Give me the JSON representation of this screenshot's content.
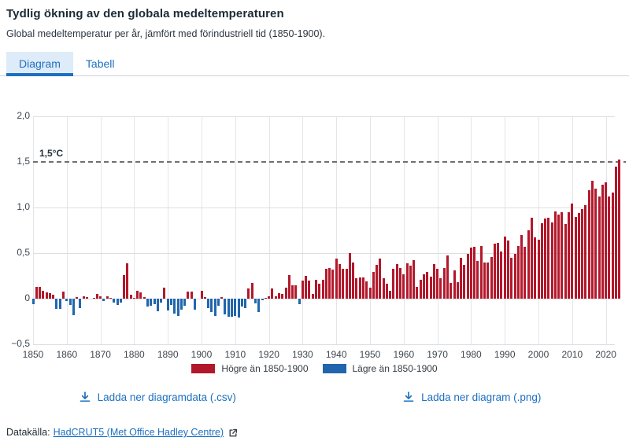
{
  "header": {
    "title": "Tydlig ökning av den globala medeltemperaturen",
    "subtitle": "Global medeltemperatur per år, jämfört med förindustriell tid (1850-1900)."
  },
  "tabs": {
    "items": [
      {
        "label": "Diagram",
        "active": true
      },
      {
        "label": "Tabell",
        "active": false
      }
    ]
  },
  "chart_data": {
    "type": "bar",
    "title": "Global medeltemperatur per år, jämfört med förindustriell tid (1850-1900)",
    "unit": "°C",
    "start_year": 1850,
    "end_year": 2024,
    "ylim": [
      -0.5,
      2.0
    ],
    "grid": true,
    "positive_color": "#b2182b",
    "negative_color": "#2166ac",
    "threshold": {
      "value": 1.5,
      "label": "1,5°C"
    },
    "yticks": [
      {
        "value": 2.0,
        "label": "2,0",
        "grid": true
      },
      {
        "value": 1.5,
        "label": "1,5",
        "grid": false
      },
      {
        "value": 1.0,
        "label": "1,0",
        "grid": true
      },
      {
        "value": 0.5,
        "label": "0,5",
        "grid": true
      },
      {
        "value": 0,
        "label": "0",
        "grid": true
      },
      {
        "value": -0.5,
        "label": "−0,5",
        "grid": true
      }
    ],
    "xticks": [
      1850,
      1860,
      1870,
      1880,
      1890,
      1900,
      1910,
      1920,
      1930,
      1940,
      1950,
      1960,
      1970,
      1980,
      1990,
      2000,
      2010,
      2020
    ],
    "values": [
      -0.06,
      0.13,
      0.13,
      0.09,
      0.07,
      0.06,
      0.04,
      -0.11,
      -0.11,
      0.08,
      -0.03,
      -0.07,
      -0.18,
      0.02,
      -0.1,
      0.03,
      0.02,
      0.0,
      0.01,
      0.05,
      0.03,
      -0.03,
      0.03,
      0.01,
      -0.04,
      -0.07,
      -0.04,
      0.26,
      0.39,
      0.04,
      0.01,
      0.09,
      0.07,
      0.02,
      -0.09,
      -0.08,
      -0.06,
      -0.14,
      -0.04,
      0.12,
      -0.13,
      -0.07,
      -0.16,
      -0.19,
      -0.12,
      -0.08,
      0.08,
      0.08,
      -0.12,
      0.0,
      0.09,
      0.02,
      -0.1,
      -0.15,
      -0.19,
      -0.08,
      0.02,
      -0.17,
      -0.2,
      -0.2,
      -0.19,
      -0.21,
      -0.09,
      -0.1,
      0.11,
      0.17,
      -0.05,
      -0.15,
      -0.02,
      0.01,
      0.03,
      0.11,
      0.03,
      0.06,
      0.05,
      0.12,
      0.26,
      0.15,
      0.15,
      -0.06,
      0.2,
      0.25,
      0.2,
      0.05,
      0.21,
      0.16,
      0.21,
      0.33,
      0.34,
      0.32,
      0.44,
      0.38,
      0.33,
      0.33,
      0.5,
      0.4,
      0.22,
      0.23,
      0.23,
      0.19,
      0.12,
      0.29,
      0.37,
      0.44,
      0.22,
      0.16,
      0.09,
      0.33,
      0.38,
      0.34,
      0.27,
      0.39,
      0.36,
      0.42,
      0.13,
      0.21,
      0.27,
      0.29,
      0.24,
      0.38,
      0.33,
      0.22,
      0.34,
      0.47,
      0.17,
      0.31,
      0.18,
      0.45,
      0.37,
      0.49,
      0.56,
      0.57,
      0.41,
      0.58,
      0.4,
      0.4,
      0.46,
      0.6,
      0.61,
      0.52,
      0.68,
      0.64,
      0.45,
      0.49,
      0.58,
      0.7,
      0.57,
      0.75,
      0.89,
      0.67,
      0.65,
      0.83,
      0.88,
      0.89,
      0.84,
      0.96,
      0.92,
      0.95,
      0.82,
      0.95,
      1.04,
      0.9,
      0.94,
      0.98,
      1.03,
      1.19,
      1.29,
      1.21,
      1.12,
      1.25,
      1.28,
      1.12,
      1.16,
      1.45,
      1.53
    ],
    "legend": [
      {
        "label": "Högre än 1850-1900",
        "color": "#b2182b"
      },
      {
        "label": "Lägre än 1850-1900",
        "color": "#2166ac"
      }
    ],
    "legend_position": "bottom"
  },
  "downloads": {
    "csv_label": "Ladda ner diagramdata (.csv)",
    "png_label": "Ladda ner diagram (.png)"
  },
  "footer": {
    "label": "Datakälla:",
    "link_text": "HadCRUT5 (Met Office Hadley Centre)"
  },
  "colors": {
    "accent": "#1d70c0",
    "active_tab_bg": "#deebf8",
    "positive": "#b2182b",
    "negative": "#2166ac",
    "gridline": "#dcdfe2",
    "threshold_line": "#6f6f6f"
  }
}
